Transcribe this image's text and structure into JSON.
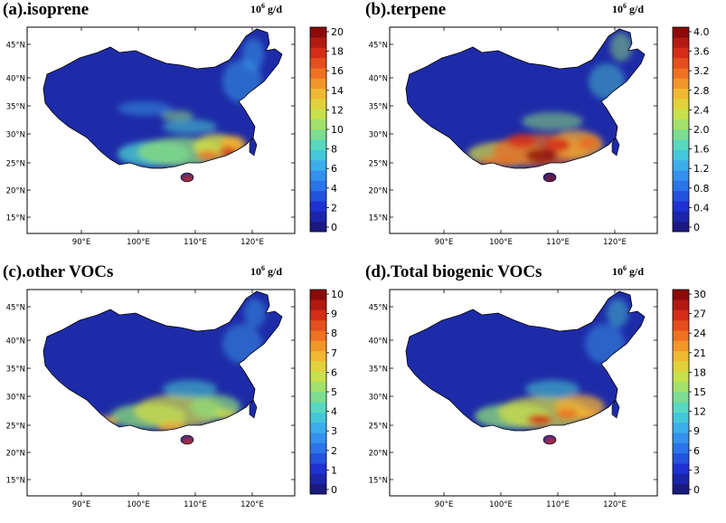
{
  "panels": [
    {
      "id": "a",
      "title": "(a).isoprene",
      "unit_base": "10",
      "unit_exp": "6",
      "unit_rest": " g/d",
      "colorbar_labels": [
        "20",
        "18",
        "16",
        "14",
        "12",
        "10",
        "8",
        "6",
        "4",
        "2",
        "0"
      ]
    },
    {
      "id": "b",
      "title": "(b).terpene",
      "unit_base": "10",
      "unit_exp": "6",
      "unit_rest": " g/d",
      "colorbar_labels": [
        "4.0",
        "3.6",
        "3.2",
        "2.8",
        "2.4",
        "2.0",
        "1.6",
        "1.2",
        "0.8",
        "0.4",
        "0"
      ]
    },
    {
      "id": "c",
      "title": "(c).other VOCs",
      "unit_base": "10",
      "unit_exp": "6",
      "unit_rest": " g/d",
      "colorbar_labels": [
        "10",
        "9",
        "8",
        "7",
        "6",
        "5",
        "4",
        "3",
        "2",
        "1",
        "0"
      ]
    },
    {
      "id": "d",
      "title": "(d).Total biogenic VOCs",
      "unit_base": "10",
      "unit_exp": "6",
      "unit_rest": " g/d",
      "colorbar_labels": [
        "30",
        "27",
        "24",
        "21",
        "18",
        "15",
        "12",
        "9",
        "6",
        "3",
        "0"
      ]
    }
  ],
  "lat_labels": [
    "45°N",
    "40°N",
    "35°N",
    "30°N",
    "25°N",
    "20°N",
    "15°N"
  ],
  "lon_labels": [
    "90°E",
    "100°E",
    "110°E",
    "120°E"
  ],
  "colors": {
    "background_dark": "#1a237e",
    "map_base": "#1e2ba8",
    "colorbar_stops": [
      "#1a1a80",
      "#1c2fd0",
      "#2a6ee8",
      "#3aa6f0",
      "#4ad6d0",
      "#8ee07a",
      "#d8e040",
      "#f4b030",
      "#ee6a20",
      "#d42a18",
      "#8c0a0a"
    ]
  }
}
